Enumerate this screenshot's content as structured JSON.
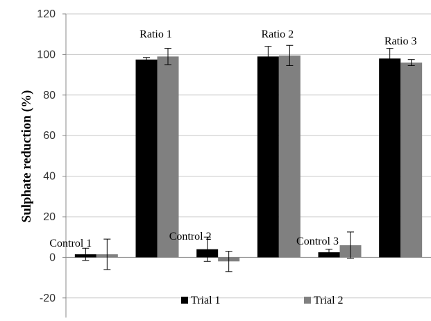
{
  "chart_data": {
    "type": "bar",
    "ylabel": "Sulphate reduction (%)",
    "xlabel": "",
    "ylim": [
      -30,
      120
    ],
    "yticks": [
      -20,
      0,
      20,
      40,
      60,
      80,
      100,
      120
    ],
    "grid": true,
    "legend_position": "bottom",
    "group_labels": [
      "Control 1",
      "Ratio 1",
      "Control 2",
      "Ratio 2",
      "Control 3",
      "Ratio 3"
    ],
    "series": [
      {
        "name": "Trial 1",
        "color": "#000000",
        "values": [
          1.5,
          97.5,
          4,
          99,
          2.5,
          98
        ],
        "errors": [
          3,
          1,
          6,
          5,
          1.5,
          5
        ]
      },
      {
        "name": "Trial 2",
        "color": "#808080",
        "values": [
          1.5,
          99,
          -2,
          99.5,
          6,
          96
        ],
        "errors": [
          7.5,
          4,
          5,
          5,
          6.5,
          1.5
        ]
      }
    ]
  }
}
